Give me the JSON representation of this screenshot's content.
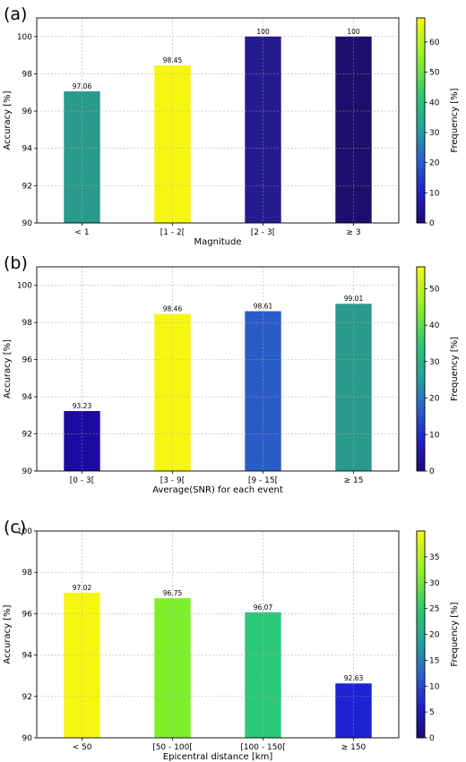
{
  "chart_data": [
    {
      "type": "bar",
      "panel": "(a)",
      "categories": [
        "< 1",
        "[1 - 2[",
        "[2 - 3[",
        "≥ 3"
      ],
      "values": [
        97.06,
        98.45,
        100,
        100
      ],
      "value_labels": [
        "97.06",
        "98.45",
        "100",
        "100"
      ],
      "bar_colors": [
        "#2a9a8c",
        "#f6f610",
        "#251a8e",
        "#1f0f6c"
      ],
      "xlabel": "Magnitude",
      "ylabel": "Accuracy [%]",
      "ylim": [
        90,
        101
      ],
      "yticks": [
        "90",
        "92",
        "94",
        "96",
        "98",
        "100"
      ],
      "grid": true,
      "colorbar": {
        "label": "Frequency [%]",
        "range": [
          0,
          68
        ],
        "ticks": [
          "0",
          "10",
          "20",
          "30",
          "40",
          "50",
          "60"
        ]
      }
    },
    {
      "type": "bar",
      "panel": "(b)",
      "categories": [
        "[0 - 3[",
        "[3 - 9[",
        "[9 - 15[",
        "≥ 15"
      ],
      "values": [
        93.23,
        98.46,
        98.61,
        99.01
      ],
      "value_labels": [
        "93.23",
        "98.46",
        "98.61",
        "99.01"
      ],
      "bar_colors": [
        "#1e0aa0",
        "#f6f610",
        "#2a5cc8",
        "#2a9a8c"
      ],
      "xlabel": "Average(SNR) for each event",
      "ylabel": "Accuracy [%]",
      "ylim": [
        90,
        101
      ],
      "yticks": [
        "90",
        "92",
        "94",
        "96",
        "98",
        "100"
      ],
      "grid": true,
      "colorbar": {
        "label": "Frequency [%]",
        "range": [
          0,
          56
        ],
        "ticks": [
          "0",
          "10",
          "20",
          "30",
          "40",
          "50"
        ]
      }
    },
    {
      "type": "bar",
      "panel": "(c)",
      "categories": [
        "< 50",
        "[50 - 100[",
        "[100 - 150[",
        "≥ 150"
      ],
      "values": [
        97.02,
        96.75,
        96.07,
        92.63
      ],
      "value_labels": [
        "97.02",
        "96.75",
        "96.07",
        "92.63"
      ],
      "bar_colors": [
        "#f6f610",
        "#7ef02a",
        "#2cc87a",
        "#1e22d2"
      ],
      "xlabel": "Epicentral distance [km]",
      "ylabel": "Accuracy [%]",
      "ylim": [
        90,
        100
      ],
      "yticks": [
        "90",
        "92",
        "94",
        "96",
        "98",
        "100"
      ],
      "grid": true,
      "colorbar": {
        "label": "Frequency [%]",
        "range": [
          0,
          40
        ],
        "ticks": [
          "0",
          "5",
          "10",
          "15",
          "20",
          "25",
          "30",
          "35"
        ]
      }
    }
  ]
}
